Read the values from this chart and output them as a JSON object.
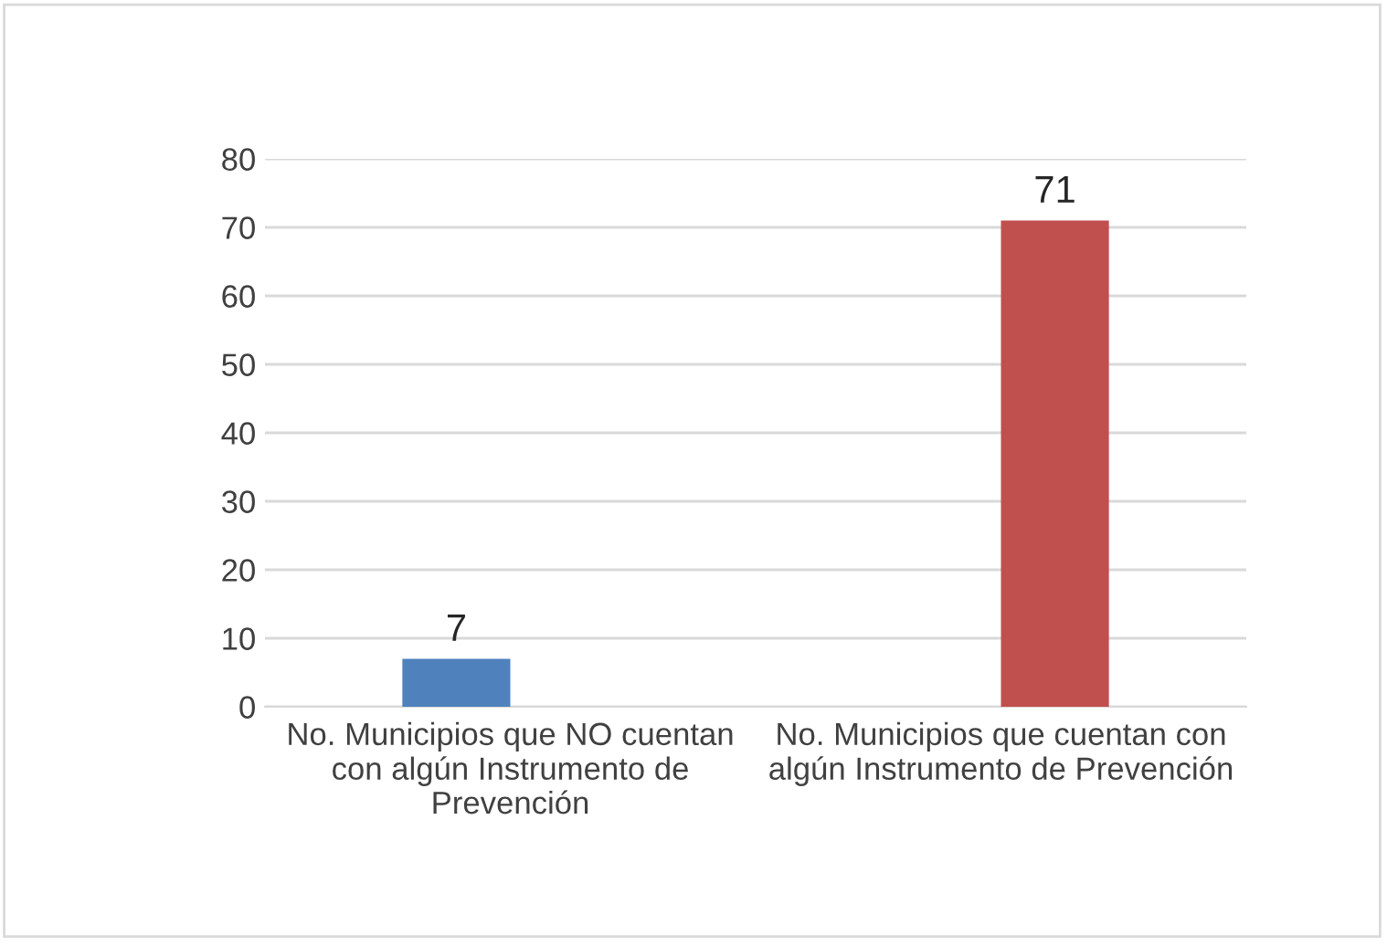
{
  "chart_data": {
    "type": "bar",
    "categories": [
      "No. Municipios que NO cuentan\ncon algún Instrumento de\nPrevención",
      "No. Municipios que cuentan con\nalgún Instrumento de Prevención"
    ],
    "series": [
      {
        "color": "#4f81bd",
        "values": [
          7,
          null
        ]
      },
      {
        "color": "#c0504d",
        "values": [
          null,
          71
        ]
      }
    ],
    "ylim": [
      0,
      80
    ],
    "yticks": [
      0,
      10,
      20,
      30,
      40,
      50,
      60,
      70,
      80
    ],
    "grid": "y",
    "data_labels": true,
    "legend": false
  }
}
